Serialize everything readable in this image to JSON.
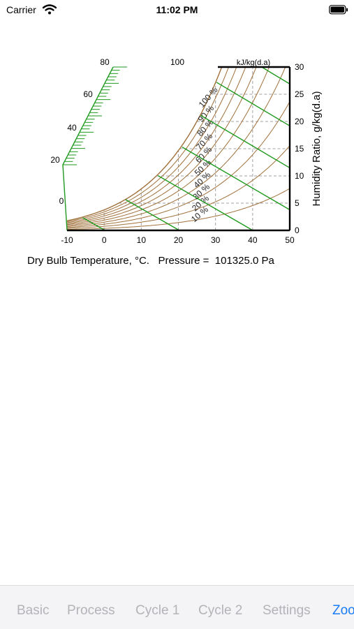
{
  "status_bar": {
    "carrier": "Carrier",
    "time": "11:02 PM"
  },
  "caption": {
    "axis_label": "Dry Bulb Temperature, °C.",
    "pressure_label": "Pressure =",
    "pressure_value": "101325.0 Pa"
  },
  "tabs": [
    {
      "label": "Basic",
      "active": false
    },
    {
      "label": "Process",
      "active": false
    },
    {
      "label": "Cycle 1",
      "active": false
    },
    {
      "label": "Cycle 2",
      "active": false
    },
    {
      "label": "Settings",
      "active": false
    },
    {
      "label": "Zoo",
      "active": true
    }
  ],
  "colors": {
    "rh_curves": "#a0703a",
    "enthalpy_lines": "#1e9a1e",
    "gridlines": "#a0a0a0",
    "accent": "#1a7cf5"
  },
  "chart_data": {
    "type": "line",
    "chart": "psychrometric",
    "xlabel": "Dry Bulb Temperature, °C.",
    "ylabel": "Humidity Ratio, g/kg(d.a)",
    "enthalpy_unit": "kJ/kg(d.a)",
    "x_ticks": [
      "-10",
      "0",
      "10",
      "20",
      "30",
      "40",
      "50"
    ],
    "y_ticks": [
      "0",
      "5",
      "10",
      "15",
      "20",
      "25",
      "30"
    ],
    "xlim": [
      -10,
      50
    ],
    "ylim": [
      0,
      30
    ],
    "pressure_pa": 101325.0,
    "rh_curves": [
      10,
      20,
      30,
      40,
      50,
      60,
      70,
      80,
      90,
      100
    ],
    "rh_labels": [
      "10 %",
      "20 %",
      "30 %",
      "40 %",
      "50 %",
      "60 %",
      "70 %",
      "80 %",
      "90 %",
      "100 %"
    ],
    "enthalpy_lines": [
      0,
      20,
      40,
      60,
      80,
      100,
      120
    ],
    "enthalpy_labels": [
      "0",
      "20",
      "40",
      "60",
      "80",
      "100"
    ],
    "dashed_grid": true
  }
}
